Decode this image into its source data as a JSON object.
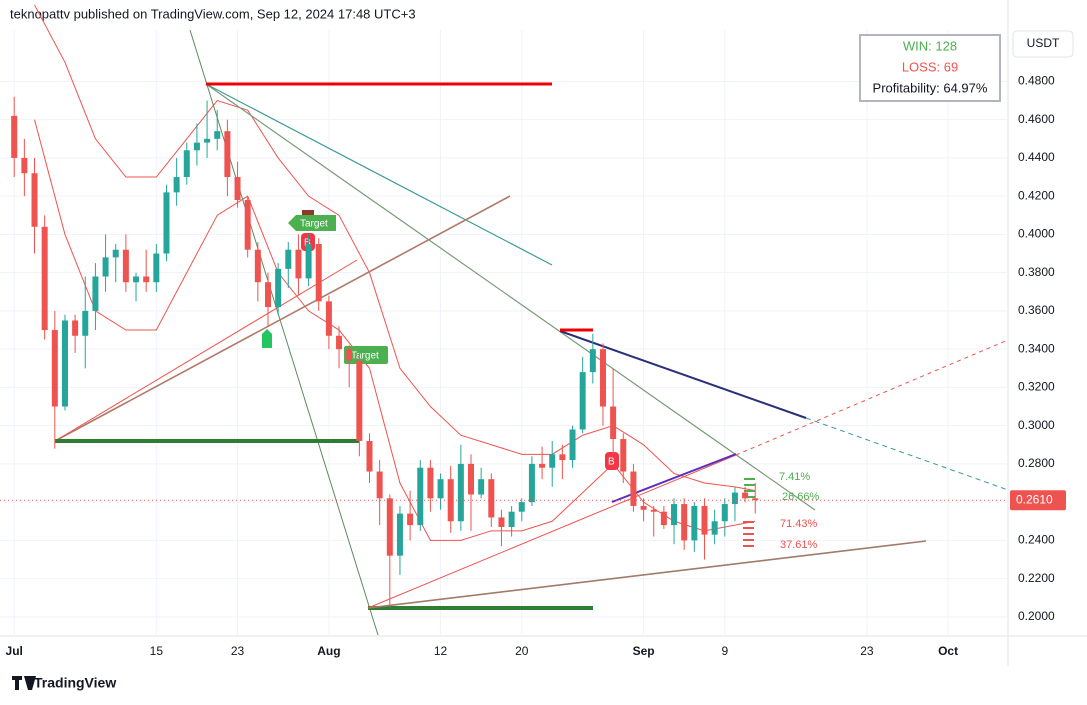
{
  "header": "teknopattv published on TradingView.com, Sep 12, 2024 17:48 UTC+3",
  "footer": "TradingView",
  "chart_data": {
    "type": "candlestick",
    "currency": "USDT",
    "stats": [
      "WIN: 128",
      "LOSS: 69",
      "Profitability: 64.97%"
    ],
    "annotations": [
      "Target",
      "Target",
      "B",
      "B"
    ],
    "gain_labels": [
      "7.41%",
      "26.66%"
    ],
    "loss_labels": [
      "71.43%",
      "37.61%"
    ],
    "last_price": {
      "value": 0.261,
      "label": "0.2610"
    },
    "up_color": "#26a69a",
    "down_color": "#ef5350",
    "grid": true,
    "xlim": [
      -1.4,
      97.9
    ],
    "ylim": [
      0.19,
      0.5069
    ],
    "xticks": [
      {
        "value": 0,
        "label": "Jul"
      },
      {
        "value": 14,
        "label": "15"
      },
      {
        "value": 22,
        "label": "23"
      },
      {
        "value": 31,
        "label": "Aug"
      },
      {
        "value": 42,
        "label": "12"
      },
      {
        "value": 50,
        "label": "20"
      },
      {
        "value": 62,
        "label": "Sep"
      },
      {
        "value": 70,
        "label": "9"
      },
      {
        "value": 84,
        "label": "23"
      },
      {
        "value": 92,
        "label": "Oct"
      }
    ],
    "yticks": [
      {
        "value": 0.2,
        "label": "0.2000"
      },
      {
        "value": 0.22,
        "label": "0.2200"
      },
      {
        "value": 0.24,
        "label": "0.2400"
      },
      {
        "value": 0.26,
        "label": "0.2600"
      },
      {
        "value": 0.28,
        "label": "0.2800"
      },
      {
        "value": 0.3,
        "label": "0.3000"
      },
      {
        "value": 0.32,
        "label": "0.3200"
      },
      {
        "value": 0.34,
        "label": "0.3400"
      },
      {
        "value": 0.36,
        "label": "0.3600"
      },
      {
        "value": 0.38,
        "label": "0.3800"
      },
      {
        "value": 0.4,
        "label": "0.4000"
      },
      {
        "value": 0.42,
        "label": "0.4200"
      },
      {
        "value": 0.44,
        "label": "0.4400"
      },
      {
        "value": 0.46,
        "label": "0.4600"
      },
      {
        "value": 0.48,
        "label": "0.4800"
      }
    ],
    "candles": {
      "x": [
        0,
        1,
        2,
        3,
        4,
        5,
        6,
        7,
        8,
        9,
        10,
        11,
        12,
        13,
        14,
        15,
        16,
        17,
        18,
        19,
        20,
        21,
        22,
        23,
        24,
        25,
        26,
        27,
        28,
        29,
        30,
        31,
        32,
        33,
        34,
        35,
        36,
        37,
        38,
        39,
        40,
        41,
        42,
        43,
        44,
        45,
        46,
        47,
        48,
        49,
        50,
        51,
        52,
        53,
        54,
        55,
        56,
        57,
        58,
        59,
        60,
        61,
        62,
        63,
        64,
        65,
        66,
        67,
        68,
        69,
        70,
        71,
        72,
        73
      ],
      "open": [
        0.462,
        0.44,
        0.432,
        0.404,
        0.35,
        0.31,
        0.355,
        0.347,
        0.36,
        0.378,
        0.388,
        0.392,
        0.375,
        0.378,
        0.375,
        0.39,
        0.422,
        0.43,
        0.444,
        0.448,
        0.45,
        0.454,
        0.43,
        0.418,
        0.392,
        0.375,
        0.362,
        0.382,
        0.392,
        0.377,
        0.395,
        0.365,
        0.347,
        0.34,
        0.334,
        0.292,
        0.276,
        0.262,
        0.232,
        0.254,
        0.248,
        0.278,
        0.262,
        0.272,
        0.25,
        0.28,
        0.264,
        0.272,
        0.252,
        0.247,
        0.255,
        0.26,
        0.28,
        0.278,
        0.285,
        0.282,
        0.298,
        0.328,
        0.34,
        0.31,
        0.293,
        0.276,
        0.258,
        0.256,
        0.255,
        0.248,
        0.259,
        0.24,
        0.258,
        0.243,
        0.25,
        0.259,
        0.265,
        0.262
      ],
      "high": [
        0.472,
        0.45,
        0.44,
        0.41,
        0.36,
        0.358,
        0.358,
        0.378,
        0.385,
        0.4,
        0.395,
        0.4,
        0.38,
        0.392,
        0.395,
        0.426,
        0.44,
        0.448,
        0.458,
        0.47,
        0.465,
        0.46,
        0.438,
        0.42,
        0.396,
        0.38,
        0.385,
        0.396,
        0.4,
        0.4,
        0.398,
        0.368,
        0.352,
        0.342,
        0.338,
        0.296,
        0.282,
        0.264,
        0.258,
        0.266,
        0.282,
        0.282,
        0.275,
        0.279,
        0.29,
        0.285,
        0.278,
        0.275,
        0.256,
        0.258,
        0.262,
        0.284,
        0.289,
        0.292,
        0.29,
        0.3,
        0.336,
        0.348,
        0.343,
        0.33,
        0.296,
        0.28,
        0.262,
        0.258,
        0.258,
        0.262,
        0.262,
        0.26,
        0.262,
        0.256,
        0.262,
        0.268,
        0.268,
        0.27
      ],
      "low": [
        0.43,
        0.42,
        0.39,
        0.345,
        0.288,
        0.308,
        0.338,
        0.33,
        0.35,
        0.37,
        0.375,
        0.37,
        0.365,
        0.37,
        0.37,
        0.386,
        0.415,
        0.426,
        0.436,
        0.44,
        0.444,
        0.42,
        0.414,
        0.388,
        0.365,
        0.352,
        0.358,
        0.372,
        0.368,
        0.373,
        0.36,
        0.34,
        0.33,
        0.32,
        0.284,
        0.27,
        0.248,
        0.205,
        0.222,
        0.24,
        0.245,
        0.255,
        0.256,
        0.244,
        0.245,
        0.245,
        0.262,
        0.247,
        0.237,
        0.242,
        0.25,
        0.258,
        0.272,
        0.268,
        0.272,
        0.278,
        0.296,
        0.322,
        0.3,
        0.285,
        0.27,
        0.255,
        0.25,
        0.242,
        0.246,
        0.238,
        0.235,
        0.234,
        0.23,
        0.238,
        0.242,
        0.25,
        0.26,
        0.254
      ],
      "close": [
        0.44,
        0.432,
        0.404,
        0.35,
        0.31,
        0.355,
        0.347,
        0.36,
        0.378,
        0.388,
        0.392,
        0.375,
        0.378,
        0.375,
        0.39,
        0.422,
        0.43,
        0.444,
        0.448,
        0.45,
        0.454,
        0.43,
        0.418,
        0.392,
        0.375,
        0.362,
        0.382,
        0.392,
        0.377,
        0.395,
        0.365,
        0.347,
        0.34,
        0.334,
        0.292,
        0.276,
        0.262,
        0.232,
        0.254,
        0.248,
        0.278,
        0.262,
        0.272,
        0.25,
        0.28,
        0.264,
        0.272,
        0.252,
        0.247,
        0.255,
        0.26,
        0.28,
        0.278,
        0.285,
        0.282,
        0.298,
        0.328,
        0.34,
        0.31,
        0.293,
        0.276,
        0.258,
        0.256,
        0.255,
        0.248,
        0.259,
        0.24,
        0.258,
        0.243,
        0.25,
        0.259,
        0.265,
        0.262,
        0.261
      ]
    },
    "bands": [
      {
        "color": "#ef5350",
        "x": [
          2,
          5,
          8,
          11,
          14,
          17,
          20,
          23,
          26,
          29,
          32,
          35,
          38,
          41,
          44,
          47,
          50,
          53,
          56,
          59,
          62,
          65,
          68,
          71,
          73
        ],
        "values": [
          0.52,
          0.49,
          0.45,
          0.43,
          0.43,
          0.45,
          0.47,
          0.465,
          0.44,
          0.42,
          0.41,
          0.38,
          0.33,
          0.31,
          0.295,
          0.29,
          0.285,
          0.285,
          0.295,
          0.3,
          0.29,
          0.275,
          0.27,
          0.268,
          0.266
        ]
      },
      {
        "color": "#ef5350",
        "x": [
          2,
          5,
          8,
          11,
          14,
          17,
          20,
          23,
          26,
          29,
          32,
          35,
          38,
          41,
          44,
          47,
          50,
          53,
          56,
          59,
          62,
          65,
          68,
          71,
          73
        ],
        "values": [
          0.46,
          0.4,
          0.36,
          0.35,
          0.35,
          0.38,
          0.41,
          0.42,
          0.38,
          0.36,
          0.35,
          0.33,
          0.27,
          0.24,
          0.24,
          0.245,
          0.245,
          0.25,
          0.265,
          0.28,
          0.26,
          0.25,
          0.245,
          0.248,
          0.25
        ]
      }
    ]
  }
}
